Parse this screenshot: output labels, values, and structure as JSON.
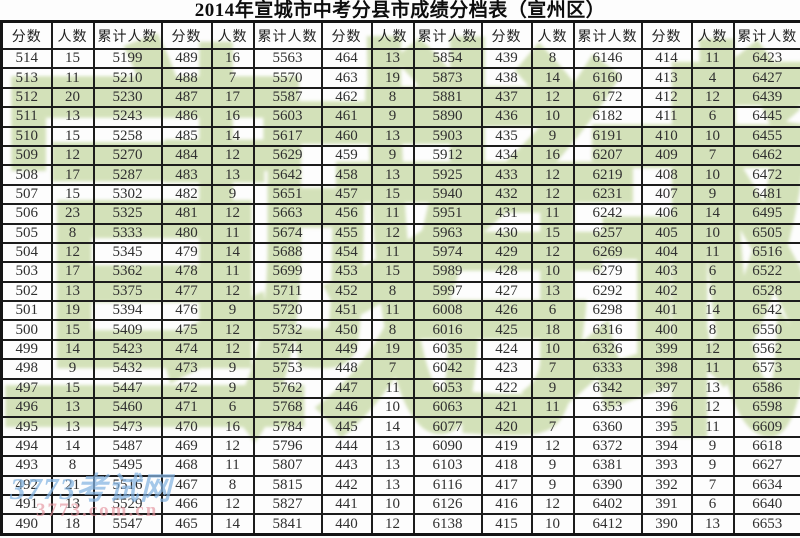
{
  "title": "2014年宣城市中考分县市成绩分档表（宣州区）",
  "table": {
    "column_headers": [
      "分数",
      "人数",
      "累计人数"
    ],
    "group_count": 5,
    "groups": [
      {
        "rows": [
          [
            514,
            15,
            5199
          ],
          [
            513,
            11,
            5210
          ],
          [
            512,
            20,
            5230
          ],
          [
            511,
            13,
            5243
          ],
          [
            510,
            15,
            5258
          ],
          [
            509,
            12,
            5270
          ],
          [
            508,
            17,
            5287
          ],
          [
            507,
            15,
            5302
          ],
          [
            506,
            23,
            5325
          ],
          [
            505,
            8,
            5333
          ],
          [
            504,
            12,
            5345
          ],
          [
            503,
            17,
            5362
          ],
          [
            502,
            13,
            5375
          ],
          [
            501,
            19,
            5394
          ],
          [
            500,
            15,
            5409
          ],
          [
            499,
            14,
            5423
          ],
          [
            498,
            9,
            5432
          ],
          [
            497,
            15,
            5447
          ],
          [
            496,
            13,
            5460
          ],
          [
            495,
            13,
            5473
          ],
          [
            494,
            14,
            5487
          ],
          [
            493,
            8,
            5495
          ],
          [
            492,
            21,
            5516
          ],
          [
            491,
            13,
            5529
          ],
          [
            490,
            18,
            5547
          ]
        ]
      },
      {
        "rows": [
          [
            489,
            16,
            5563
          ],
          [
            488,
            7,
            5570
          ],
          [
            487,
            17,
            5587
          ],
          [
            486,
            16,
            5603
          ],
          [
            485,
            14,
            5617
          ],
          [
            484,
            12,
            5629
          ],
          [
            483,
            13,
            5642
          ],
          [
            482,
            9,
            5651
          ],
          [
            481,
            12,
            5663
          ],
          [
            480,
            11,
            5674
          ],
          [
            479,
            14,
            5688
          ],
          [
            478,
            11,
            5699
          ],
          [
            477,
            12,
            5711
          ],
          [
            476,
            9,
            5720
          ],
          [
            475,
            12,
            5732
          ],
          [
            474,
            12,
            5744
          ],
          [
            473,
            9,
            5753
          ],
          [
            472,
            9,
            5762
          ],
          [
            471,
            6,
            5768
          ],
          [
            470,
            16,
            5784
          ],
          [
            469,
            12,
            5796
          ],
          [
            468,
            11,
            5807
          ],
          [
            467,
            8,
            5815
          ],
          [
            466,
            12,
            5827
          ],
          [
            465,
            14,
            5841
          ]
        ]
      },
      {
        "rows": [
          [
            464,
            13,
            5854
          ],
          [
            463,
            19,
            5873
          ],
          [
            462,
            8,
            5881
          ],
          [
            461,
            9,
            5890
          ],
          [
            460,
            13,
            5903
          ],
          [
            459,
            9,
            5912
          ],
          [
            458,
            13,
            5925
          ],
          [
            457,
            15,
            5940
          ],
          [
            456,
            11,
            5951
          ],
          [
            455,
            12,
            5963
          ],
          [
            454,
            11,
            5974
          ],
          [
            453,
            15,
            5989
          ],
          [
            452,
            8,
            5997
          ],
          [
            451,
            11,
            6008
          ],
          [
            450,
            8,
            6016
          ],
          [
            449,
            19,
            6035
          ],
          [
            448,
            7,
            6042
          ],
          [
            447,
            11,
            6053
          ],
          [
            446,
            10,
            6063
          ],
          [
            445,
            14,
            6077
          ],
          [
            444,
            13,
            6090
          ],
          [
            443,
            13,
            6103
          ],
          [
            442,
            13,
            6116
          ],
          [
            441,
            10,
            6126
          ],
          [
            440,
            12,
            6138
          ]
        ]
      },
      {
        "rows": [
          [
            439,
            8,
            6146
          ],
          [
            438,
            14,
            6160
          ],
          [
            437,
            12,
            6172
          ],
          [
            436,
            10,
            6182
          ],
          [
            435,
            9,
            6191
          ],
          [
            434,
            16,
            6207
          ],
          [
            433,
            12,
            6219
          ],
          [
            432,
            12,
            6231
          ],
          [
            431,
            11,
            6242
          ],
          [
            430,
            15,
            6257
          ],
          [
            429,
            12,
            6269
          ],
          [
            428,
            10,
            6279
          ],
          [
            427,
            13,
            6292
          ],
          [
            426,
            6,
            6298
          ],
          [
            425,
            18,
            6316
          ],
          [
            424,
            10,
            6326
          ],
          [
            423,
            7,
            6333
          ],
          [
            422,
            9,
            6342
          ],
          [
            421,
            11,
            6353
          ],
          [
            420,
            7,
            6360
          ],
          [
            419,
            12,
            6372
          ],
          [
            418,
            9,
            6381
          ],
          [
            417,
            9,
            6390
          ],
          [
            416,
            12,
            6402
          ],
          [
            415,
            10,
            6412
          ]
        ]
      },
      {
        "rows": [
          [
            414,
            11,
            6423
          ],
          [
            413,
            4,
            6427
          ],
          [
            412,
            12,
            6439
          ],
          [
            411,
            6,
            6445
          ],
          [
            410,
            10,
            6455
          ],
          [
            409,
            7,
            6462
          ],
          [
            408,
            10,
            6472
          ],
          [
            407,
            9,
            6481
          ],
          [
            406,
            14,
            6495
          ],
          [
            405,
            10,
            6505
          ],
          [
            404,
            11,
            6516
          ],
          [
            403,
            6,
            6522
          ],
          [
            402,
            6,
            6528
          ],
          [
            401,
            14,
            6542
          ],
          [
            400,
            8,
            6550
          ],
          [
            399,
            12,
            6562
          ],
          [
            398,
            11,
            6573
          ],
          [
            397,
            13,
            6586
          ],
          [
            396,
            12,
            6598
          ],
          [
            395,
            11,
            6609
          ],
          [
            394,
            9,
            6618
          ],
          [
            393,
            9,
            6627
          ],
          [
            392,
            7,
            6634
          ],
          [
            391,
            6,
            6640
          ],
          [
            390,
            13,
            6653
          ]
        ]
      }
    ]
  },
  "watermarks": {
    "site_name": "3773考试网",
    "site_url": "3773.com.cn",
    "green_glyphs": [
      "宣",
      "城",
      "考",
      "试",
      "网"
    ],
    "green_color": "#b8cf8c",
    "site_name_color": "#84b4e2",
    "site_url_color": "#e6949f"
  }
}
